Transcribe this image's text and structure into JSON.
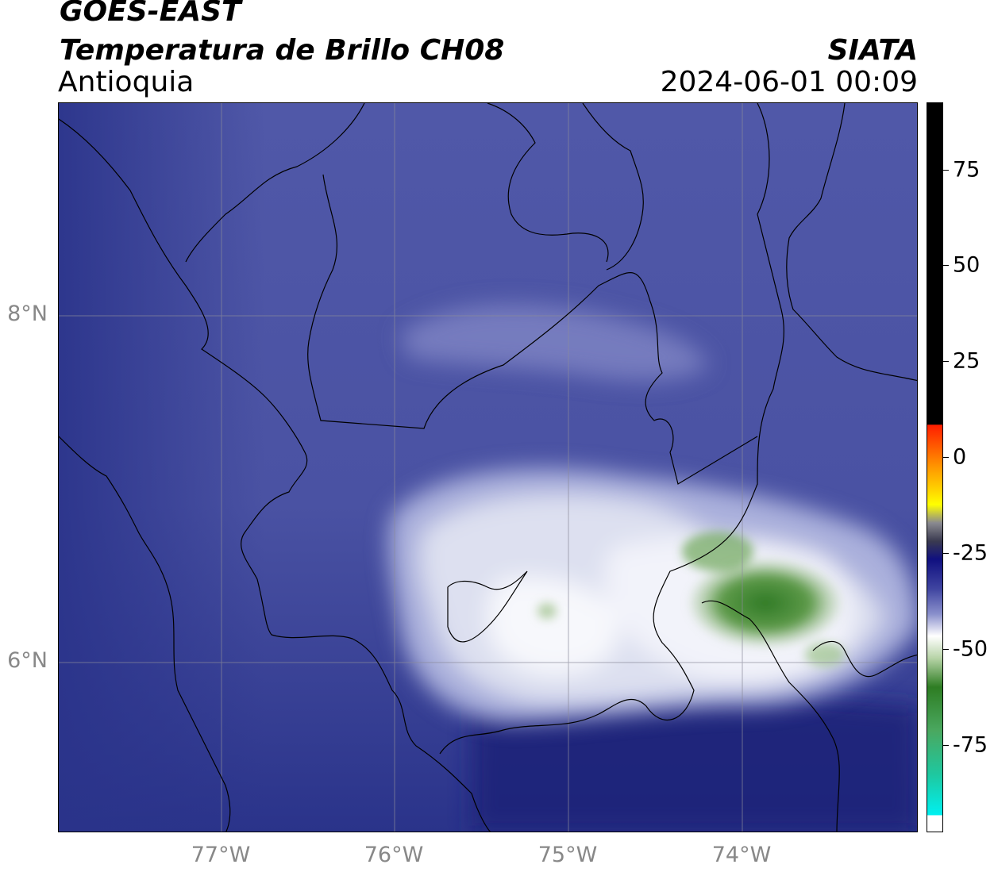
{
  "header": {
    "satellite": "GOES-EAST",
    "product": "Temperatura de Brillo CH08",
    "region": "Antioquia",
    "organization": "SIATA",
    "datetime": "2024-06-01 00:09"
  },
  "map": {
    "lat_labels": [
      "8°N",
      "6°N"
    ],
    "lon_labels": [
      "77°W",
      "76°W",
      "75°W",
      "74°W"
    ],
    "colors": {
      "background_dark": "#1e2a7a",
      "background_mid": "#4c55a6",
      "cloud_light": "#b7bde0",
      "cloud_white": "#f4f5fa",
      "cold_green": "#4d8f3a",
      "border_line": "#000000",
      "grid_line": "#888888"
    }
  },
  "colorbar": {
    "ticks": [
      "75",
      "50",
      "25",
      "0",
      "-25",
      "-50",
      "-75"
    ],
    "range": [
      -95,
      90
    ],
    "colors": {
      "black": "#000000",
      "red": "#ff1e00",
      "orange": "#ff9a00",
      "yellow": "#ffff00",
      "dark_gray": "#3a3a50",
      "navy": "#101080",
      "lavender": "#8a90cc",
      "white": "#ffffff",
      "green": "#2e7d23",
      "teal": "#1ec8a0",
      "cyan": "#00f0f0"
    }
  }
}
